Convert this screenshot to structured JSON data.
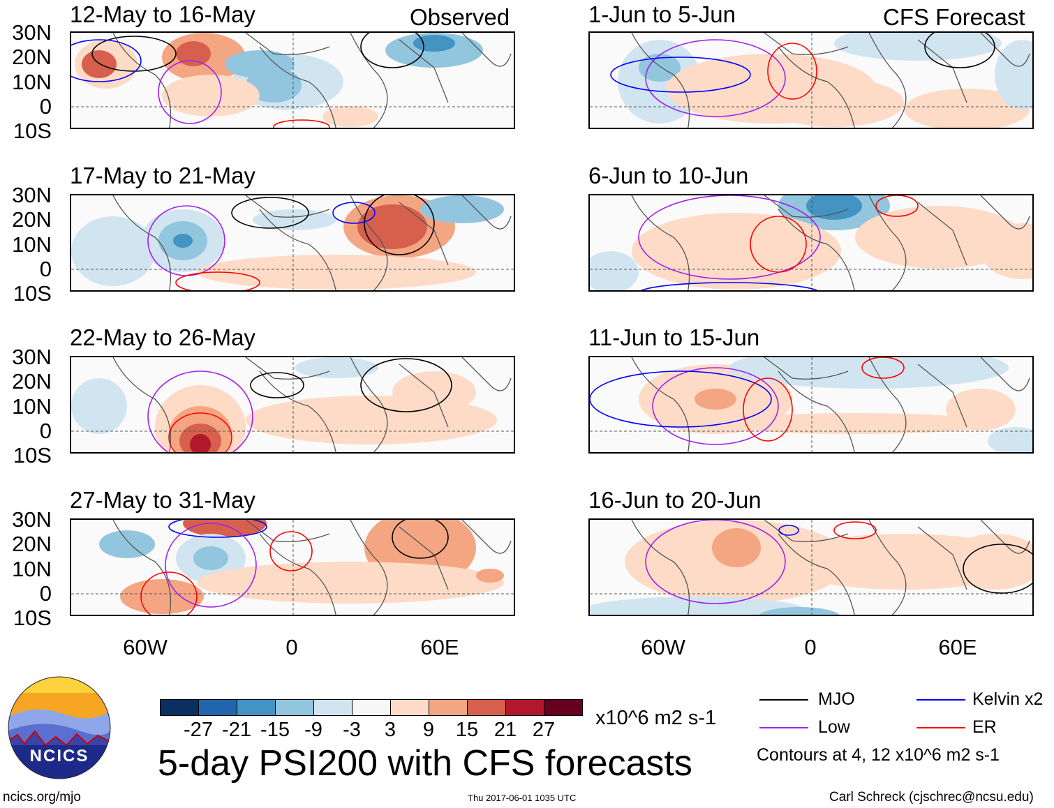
{
  "header": {
    "observed_label": "Observed",
    "forecast_label": "CFS Forecast"
  },
  "panels_observed": [
    {
      "title": "12-May to 16-May"
    },
    {
      "title": "17-May to 21-May"
    },
    {
      "title": "22-May to 26-May"
    },
    {
      "title": "27-May to 31-May"
    }
  ],
  "panels_forecast": [
    {
      "title": "1-Jun to 5-Jun"
    },
    {
      "title": "6-Jun to 10-Jun"
    },
    {
      "title": "11-Jun to 15-Jun"
    },
    {
      "title": "16-Jun to 20-Jun"
    }
  ],
  "lat_labels": [
    "30N",
    "20N",
    "10N",
    "0",
    "10S"
  ],
  "lon_labels": [
    "60W",
    "0",
    "60E"
  ],
  "colorbar": {
    "colors": [
      "#0a3060",
      "#2166ac",
      "#4393c3",
      "#92c5de",
      "#d1e5f0",
      "#f7f7f7",
      "#fddbc7",
      "#f4a582",
      "#d6604d",
      "#b2182b",
      "#67001f"
    ],
    "labels": [
      "-27",
      "-21",
      "-15",
      "-9",
      "-3",
      "3",
      "9",
      "15",
      "21",
      "27"
    ],
    "units": "x10^6 m2 s-1"
  },
  "title": "5-day PSI200 with CFS forecasts",
  "legend": {
    "items": [
      {
        "label": "MJO",
        "color": "#000000"
      },
      {
        "label": "Kelvin x2",
        "color": "#0000ff"
      },
      {
        "label": "Low",
        "color": "#a020f0"
      },
      {
        "label": "ER",
        "color": "#ff0000"
      }
    ],
    "note": "Contours at 4, 12 x10^6 m2 s-1"
  },
  "footer": {
    "logo_text": "NCICS",
    "url": "ncics.org/mjo",
    "timestamp": "Thu 2017-06-01 1035 UTC",
    "credit": "Carl Schreck (cjschrec@ncsu.edu)"
  }
}
